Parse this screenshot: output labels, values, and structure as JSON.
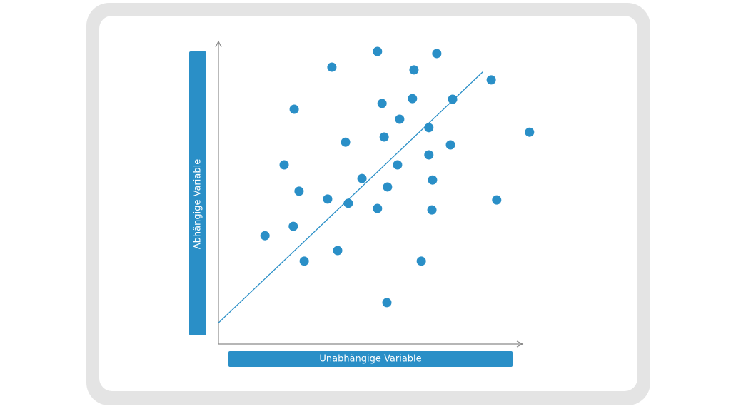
{
  "chart_data": {
    "type": "scatter",
    "x_label": "Unabhängige Variable",
    "y_label": "Abhängige Variable",
    "color": "#2a8fc7",
    "xlim": [
      0,
      100
    ],
    "ylim": [
      0,
      100
    ],
    "x": [
      52.3,
      71.8,
      37.3,
      64.3,
      89.7,
      63.8,
      77.0,
      53.8,
      24.9,
      59.6,
      69.2,
      102.3,
      54.5,
      41.8,
      76.3,
      69.2,
      21.6,
      58.9,
      47.2,
      70.4,
      55.6,
      26.5,
      35.9,
      42.7,
      91.5,
      52.3,
      70.2,
      24.6,
      15.3,
      39.2,
      28.2,
      66.7,
      55.4
    ],
    "values": [
      96.7,
      96.0,
      91.5,
      90.6,
      87.3,
      81.1,
      80.9,
      79.5,
      77.6,
      74.3,
      71.5,
      70.0,
      68.4,
      66.7,
      65.8,
      62.5,
      59.2,
      59.2,
      54.7,
      54.2,
      51.9,
      50.5,
      47.9,
      46.5,
      47.6,
      44.8,
      44.3,
      38.9,
      35.8,
      30.9,
      27.4,
      27.4,
      13.7
    ],
    "trend_line": {
      "x": [
        0,
        87
      ],
      "values": [
        7,
        90
      ]
    }
  }
}
